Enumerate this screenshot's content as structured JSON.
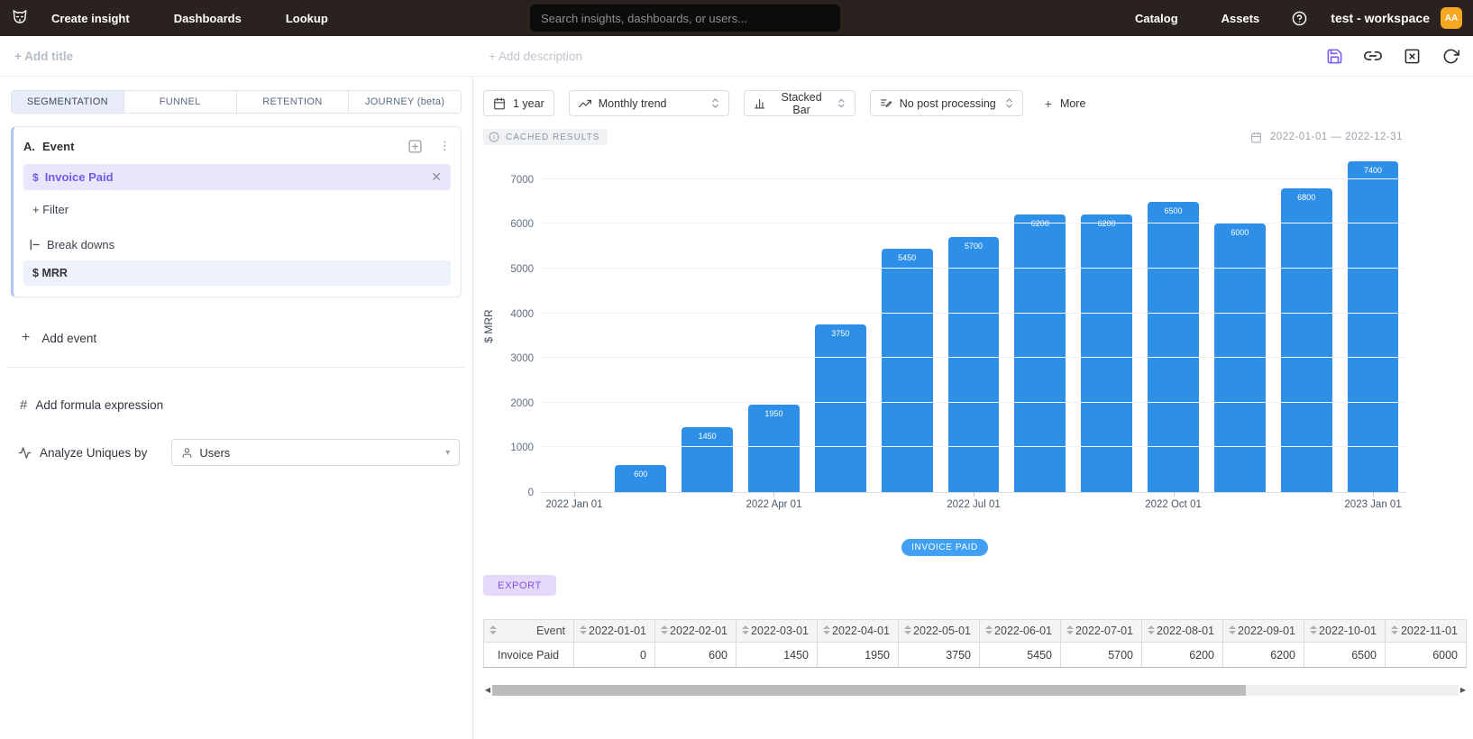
{
  "navbar": {
    "items": [
      "Create insight",
      "Dashboards",
      "Lookup"
    ],
    "search_placeholder": "Search insights, dashboards, or users...",
    "right_items": [
      "Catalog",
      "Assets"
    ],
    "workspace": "test - workspace",
    "avatar": "AA"
  },
  "header": {
    "add_title": "+ Add title",
    "add_description": "+ Add description"
  },
  "sidebar": {
    "tabs": [
      {
        "label": "SEGMENTATION",
        "active": true
      },
      {
        "label": "FUNNEL",
        "active": false
      },
      {
        "label": "RETENTION",
        "active": false
      },
      {
        "label": "JOURNEY (beta)",
        "active": false
      }
    ],
    "event_card": {
      "index": "A.",
      "title": "Event",
      "event_symbol": "$",
      "event_name": "Invoice Paid",
      "filter_label": "+ Filter",
      "breakdowns_label": "Break downs",
      "breakdown_symbol": "$",
      "breakdown_name": "MRR"
    },
    "add_event_label": "Add event",
    "plus_glyph": "+",
    "formula_glyph": "#",
    "add_formula_label": "Add formula expression",
    "analyze_label": "Analyze Uniques by",
    "analyze_value": "Users",
    "analyze_caret": "▾"
  },
  "toolbar": {
    "period": "1 year",
    "trend": "Monthly trend",
    "chart_type": "Stacked Bar",
    "post_processing": "No post processing",
    "more_plus": "+",
    "more_label": "More"
  },
  "results": {
    "cached_badge": "CACHED RESULTS",
    "date_range": "2022-01-01 — 2022-12-31",
    "export_label": "EXPORT"
  },
  "chart_data": {
    "type": "bar",
    "title": "",
    "xlabel": "",
    "ylabel": "$ MRR",
    "series_name": "INVOICE PAID",
    "x": [
      "2022-01-01",
      "2022-02-01",
      "2022-03-01",
      "2022-04-01",
      "2022-05-01",
      "2022-06-01",
      "2022-07-01",
      "2022-08-01",
      "2022-09-01",
      "2022-10-01",
      "2022-11-01",
      "2022-12-01",
      "2023-01-01"
    ],
    "values": [
      0,
      600,
      1450,
      1950,
      3750,
      5450,
      5700,
      6200,
      6200,
      6500,
      6000,
      6800,
      7400
    ],
    "yticks": [
      0,
      1000,
      2000,
      3000,
      4000,
      5000,
      6000,
      7000
    ],
    "ylim": [
      0,
      7600
    ],
    "x_tick_positions": [
      0,
      3,
      6,
      9,
      12
    ],
    "x_tick_labels": [
      "2022 Jan 01",
      "2022 Apr 01",
      "2022 Jul 01",
      "2022 Oct 01",
      "2023 Jan 01"
    ],
    "grid": "horizontal",
    "legend": [
      "INVOICE PAID"
    ],
    "legend_position": "bottom",
    "bar_color": "#2E8FE9"
  },
  "table": {
    "columns": [
      "Event",
      "2022-01-01",
      "2022-02-01",
      "2022-03-01",
      "2022-04-01",
      "2022-05-01",
      "2022-06-01",
      "2022-07-01",
      "2022-08-01",
      "2022-09-01",
      "2022-10-01",
      "2022-11-01"
    ],
    "rows": [
      {
        "event": "Invoice Paid",
        "values": [
          "0",
          "600",
          "1450",
          "1950",
          "3750",
          "5450",
          "5700",
          "6200",
          "6200",
          "6500",
          "6000"
        ]
      }
    ]
  },
  "colors": {
    "accent_purple": "#7A5AF8",
    "bar_blue": "#2E8FE9",
    "legend_blue": "#41A0F2",
    "avatar_orange": "#F6A821",
    "navbar_bg": "#29221F"
  }
}
